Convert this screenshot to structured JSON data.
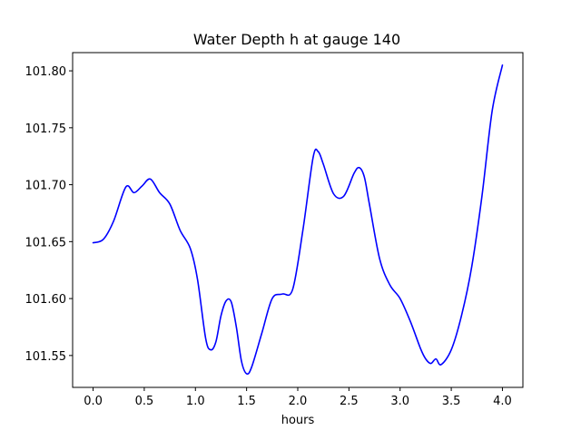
{
  "chart_data": {
    "type": "line",
    "title": "Water Depth h at gauge 140",
    "xlabel": "hours",
    "ylabel": "",
    "xlim": [
      -0.2,
      4.2
    ],
    "ylim": [
      101.522,
      101.816
    ],
    "xticks": [
      0.0,
      0.5,
      1.0,
      1.5,
      2.0,
      2.5,
      3.0,
      3.5,
      4.0
    ],
    "xtick_labels": [
      "0.0",
      "0.5",
      "1.0",
      "1.5",
      "2.0",
      "2.5",
      "3.0",
      "3.5",
      "4.0"
    ],
    "yticks": [
      101.55,
      101.6,
      101.65,
      101.7,
      101.75,
      101.8
    ],
    "ytick_labels": [
      "101.55",
      "101.60",
      "101.65",
      "101.70",
      "101.75",
      "101.80"
    ],
    "grid": false,
    "series": [
      {
        "color": "#0000ff",
        "x": [
          0.0,
          0.1,
          0.2,
          0.32,
          0.4,
          0.48,
          0.56,
          0.65,
          0.75,
          0.85,
          0.95,
          1.02,
          1.1,
          1.15,
          1.2,
          1.25,
          1.3,
          1.35,
          1.4,
          1.45,
          1.5,
          1.55,
          1.65,
          1.75,
          1.85,
          1.95,
          2.05,
          2.15,
          2.2,
          2.25,
          2.35,
          2.45,
          2.55,
          2.6,
          2.65,
          2.7,
          2.8,
          2.9,
          3.0,
          3.1,
          3.2,
          3.25,
          3.3,
          3.35,
          3.4,
          3.5,
          3.6,
          3.7,
          3.8,
          3.9,
          4.0
        ],
        "y": [
          101.649,
          101.652,
          101.668,
          101.698,
          101.693,
          101.699,
          101.705,
          101.693,
          101.683,
          101.66,
          101.644,
          101.617,
          101.565,
          101.555,
          101.562,
          101.585,
          101.598,
          101.597,
          101.575,
          101.545,
          101.534,
          101.54,
          101.57,
          101.6,
          101.604,
          101.608,
          101.66,
          101.724,
          101.729,
          101.718,
          101.692,
          101.69,
          101.71,
          101.715,
          101.707,
          101.683,
          101.635,
          101.612,
          101.6,
          101.58,
          101.556,
          101.547,
          101.543,
          101.547,
          101.542,
          101.555,
          101.585,
          101.628,
          101.69,
          101.765,
          101.805
        ]
      }
    ]
  }
}
